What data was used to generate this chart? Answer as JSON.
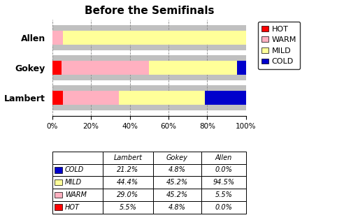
{
  "title": "Before the Semifinals",
  "categories": [
    "Lambert",
    "Gokey",
    "Allen"
  ],
  "segments": {
    "HOT": [
      5.5,
      4.8,
      0.0
    ],
    "WARM": [
      29.0,
      45.2,
      5.5
    ],
    "MILD": [
      44.4,
      45.2,
      94.5
    ],
    "COLD": [
      21.2,
      4.8,
      0.0
    ]
  },
  "colors": {
    "HOT": "#FF0000",
    "WARM": "#FFB0C0",
    "MILD": "#FFFF99",
    "COLD": "#0000CC"
  },
  "segment_order": [
    "HOT",
    "WARM",
    "MILD",
    "COLD"
  ],
  "table_headers": [
    "",
    "Lambert",
    "Gokey",
    "Allen"
  ],
  "table_rows": [
    [
      "COLD",
      "21.2%",
      "4.8%",
      "0.0%"
    ],
    [
      "MILD",
      "44.4%",
      "45.2%",
      "94.5%"
    ],
    [
      "WARM",
      "29.0%",
      "45.2%",
      "5.5%"
    ],
    [
      "HOT",
      "5.5%",
      "4.8%",
      "0.0%"
    ]
  ],
  "bg_color": "#C0C0C0",
  "dot_color": "#A0A0A0",
  "bar_height": 0.45,
  "title_fontsize": 11,
  "tick_fontsize": 7.5,
  "label_fontsize": 9,
  "legend_fontsize": 8
}
